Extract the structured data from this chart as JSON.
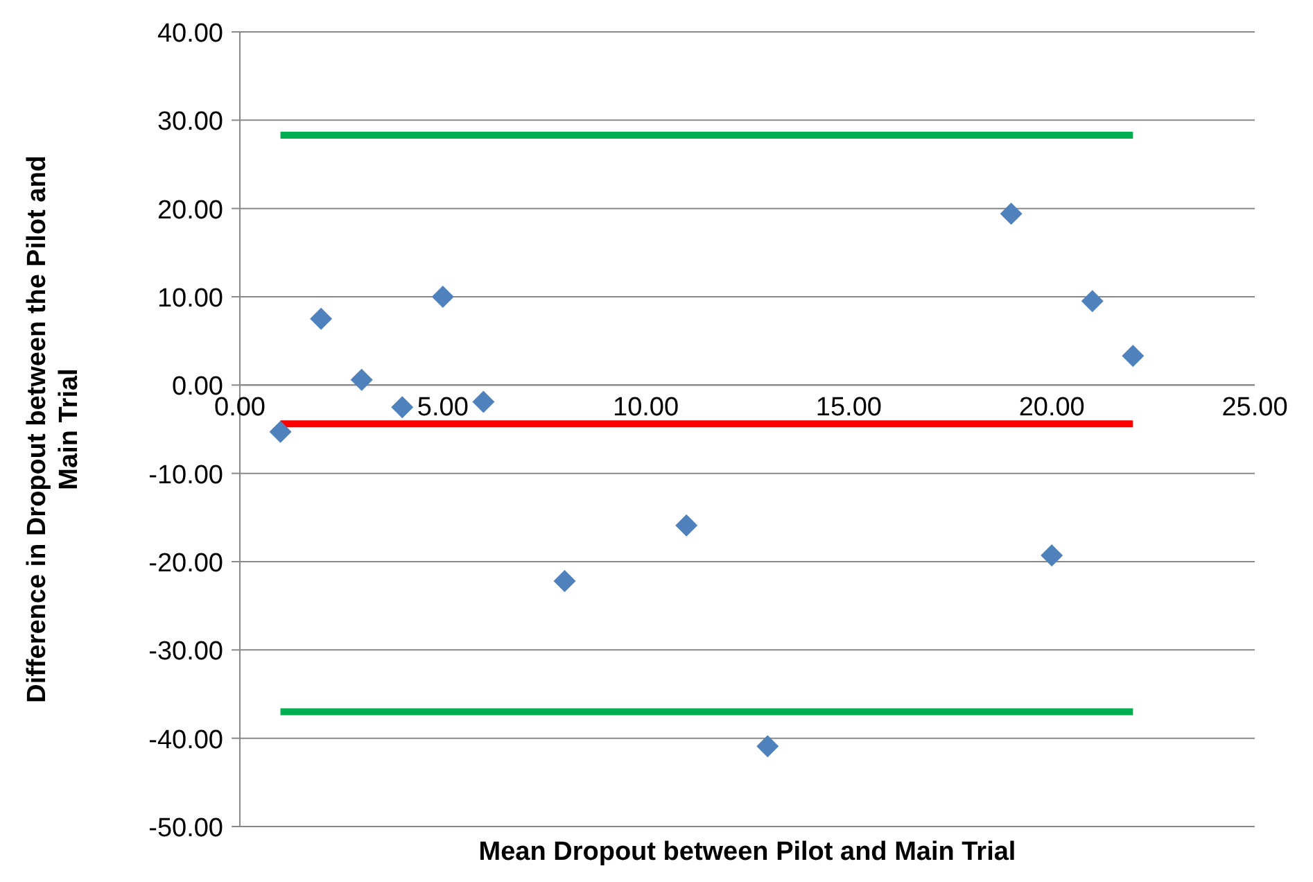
{
  "chart_data": {
    "type": "scatter",
    "xlabel": "Mean Dropout between Pilot and Main Trial",
    "ylabel": "Difference in Dropout between the Pilot and Main Trial",
    "xlim": [
      0,
      25
    ],
    "xticks": [
      {
        "value": 0,
        "label": "0.00"
      },
      {
        "value": 5,
        "label": "5.00"
      },
      {
        "value": 10,
        "label": "10.00"
      },
      {
        "value": 15,
        "label": "15.00"
      },
      {
        "value": 20,
        "label": "20.00"
      },
      {
        "value": 25,
        "label": "25.00"
      }
    ],
    "ylim": [
      -50,
      40
    ],
    "yticks": [
      {
        "value": -50,
        "label": "-50.00"
      },
      {
        "value": -40,
        "label": "-40.00"
      },
      {
        "value": -30,
        "label": "-30.00"
      },
      {
        "value": -20,
        "label": "-20.00"
      },
      {
        "value": -10,
        "label": "-10.00"
      },
      {
        "value": 0,
        "label": "0.00"
      },
      {
        "value": 10,
        "label": "10.00"
      },
      {
        "value": 20,
        "label": "20.00"
      },
      {
        "value": 30,
        "label": "30.00"
      },
      {
        "value": 40,
        "label": "40.00"
      }
    ],
    "grid": "y",
    "legend": false,
    "marker": "diamond",
    "series": [
      {
        "color": "#4f81bd",
        "x": [
          1,
          2,
          3,
          4,
          5,
          6,
          8,
          11,
          13,
          19,
          20,
          21,
          22
        ],
        "values": [
          -5.3,
          7.5,
          0.6,
          -2.5,
          10,
          -1.9,
          -22.2,
          -15.9,
          -40.9,
          19.4,
          -19.3,
          9.5,
          3.3
        ]
      },
      {
        "type": "line",
        "marker": "none",
        "color": "#00b050",
        "x": [
          1,
          22
        ],
        "values": [
          28.3,
          28.3
        ]
      },
      {
        "type": "line",
        "marker": "none",
        "color": "#ff0000",
        "x": [
          1,
          22
        ],
        "values": [
          -4.4,
          -4.4
        ]
      },
      {
        "type": "line",
        "marker": "none",
        "color": "#00b050",
        "x": [
          1,
          22
        ],
        "values": [
          -37,
          -37
        ]
      }
    ]
  }
}
